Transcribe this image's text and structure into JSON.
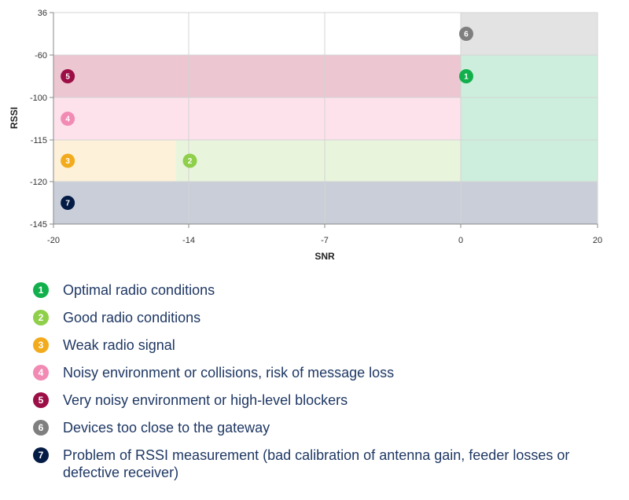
{
  "chart_data": {
    "type": "scatter",
    "xlabel": "SNR",
    "ylabel": "RSSI",
    "x_ticks": [
      -20,
      -14,
      -7,
      0,
      20
    ],
    "y_ticks": [
      36,
      -60,
      -100,
      -115,
      -120,
      -145
    ],
    "xlim": [
      -20,
      20
    ],
    "grid": true,
    "regions": [
      {
        "id": "6",
        "x": [
          0,
          20
        ],
        "y_band": [
          36,
          -60
        ],
        "color": "#e3e3e3"
      },
      {
        "id": "5",
        "x": [
          -20,
          0
        ],
        "y_band": [
          -60,
          -100
        ],
        "color": "#ecc6d1"
      },
      {
        "id": "1",
        "x": [
          0,
          20
        ],
        "y_band": [
          -60,
          -120
        ],
        "color": "#cdeedd"
      },
      {
        "id": "4",
        "x": [
          -20,
          0
        ],
        "y_band": [
          -100,
          -115
        ],
        "color": "#fde2ec"
      },
      {
        "id": "3",
        "x": [
          -20,
          -14
        ],
        "y_band": [
          -115,
          -120
        ],
        "color": "#fdf1da"
      },
      {
        "id": "2",
        "x": [
          -14,
          0
        ],
        "y_band": [
          -115,
          -120
        ],
        "color": "#e8f5dc"
      },
      {
        "id": "7",
        "x": [
          -20,
          20
        ],
        "y_band": [
          -120,
          -145
        ],
        "color": "#c9ced9"
      }
    ],
    "markers": [
      {
        "id": "6",
        "label": "6",
        "snr": 0.8,
        "y_band": [
          36,
          -60
        ],
        "frac": 0.5,
        "color": "#7f7f7f"
      },
      {
        "id": "1",
        "label": "1",
        "snr": 0.8,
        "y_band": [
          -60,
          -100
        ],
        "frac": 0.5,
        "color": "#12b04c"
      },
      {
        "id": "5",
        "label": "5",
        "snr": -19.3,
        "y_band": [
          -60,
          -100
        ],
        "frac": 0.5,
        "color": "#9c0e46"
      },
      {
        "id": "4",
        "label": "4",
        "snr": -19.3,
        "y_band": [
          -100,
          -115
        ],
        "frac": 0.5,
        "color": "#f28bb4"
      },
      {
        "id": "3",
        "label": "3",
        "snr": -19.3,
        "y_band": [
          -115,
          -120
        ],
        "frac": 0.5,
        "color": "#f2ab1c"
      },
      {
        "id": "2",
        "label": "2",
        "snr": -13.3,
        "y_band": [
          -115,
          -120
        ],
        "frac": 0.5,
        "color": "#8fcf4a"
      },
      {
        "id": "7",
        "label": "7",
        "snr": -19.3,
        "y_band": [
          -120,
          -145
        ],
        "frac": 0.5,
        "color": "#041c45"
      }
    ]
  },
  "legend": [
    {
      "label": "1",
      "text": "Optimal radio conditions",
      "color": "#12b04c"
    },
    {
      "label": "2",
      "text": "Good radio conditions",
      "color": "#8fcf4a"
    },
    {
      "label": "3",
      "text": "Weak radio signal",
      "color": "#f2ab1c"
    },
    {
      "label": "4",
      "text": "Noisy environment or collisions, risk of message loss",
      "color": "#f28bb4"
    },
    {
      "label": "5",
      "text": "Very noisy environment or high-level blockers",
      "color": "#9c0e46"
    },
    {
      "label": "6",
      "text": "Devices too close to the gateway",
      "color": "#7f7f7f"
    },
    {
      "label": "7",
      "text": "Problem of RSSI measurement (bad calibration of antenna gain, feeder losses or defective receiver)",
      "color": "#041c45"
    }
  ]
}
